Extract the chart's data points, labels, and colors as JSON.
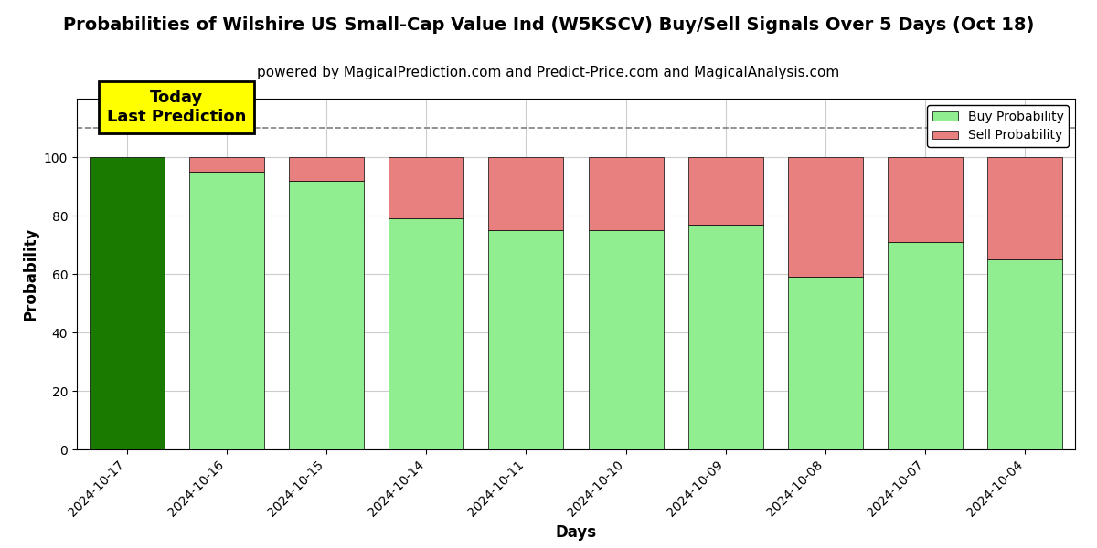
{
  "title": "Probabilities of Wilshire US Small-Cap Value Ind (W5KSCV) Buy/Sell Signals Over 5 Days (Oct 18)",
  "subtitle": "powered by MagicalPrediction.com and Predict-Price.com and MagicalAnalysis.com",
  "xlabel": "Days",
  "ylabel": "Probability",
  "categories": [
    "2024-10-17",
    "2024-10-16",
    "2024-10-15",
    "2024-10-14",
    "2024-10-11",
    "2024-10-10",
    "2024-10-09",
    "2024-10-08",
    "2024-10-07",
    "2024-10-04"
  ],
  "buy_values": [
    100,
    95,
    92,
    79,
    75,
    75,
    77,
    59,
    71,
    65
  ],
  "sell_values": [
    0,
    5,
    8,
    21,
    25,
    25,
    23,
    41,
    29,
    35
  ],
  "today_bar_color": "#1a7a00",
  "buy_color": "#90ee90",
  "sell_color": "#e88080",
  "today_annotation": "Today\nLast Prediction",
  "annotation_bg_color": "#ffff00",
  "dashed_line_y": 110,
  "ylim": [
    0,
    120
  ],
  "yticks": [
    0,
    20,
    40,
    60,
    80,
    100
  ],
  "legend_buy_label": "Buy Probability",
  "legend_sell_label": "Sell Probability",
  "background_color": "#ffffff",
  "grid_color": "#cccccc",
  "title_fontsize": 14,
  "subtitle_fontsize": 11,
  "axis_fontsize": 12,
  "tick_fontsize": 10
}
